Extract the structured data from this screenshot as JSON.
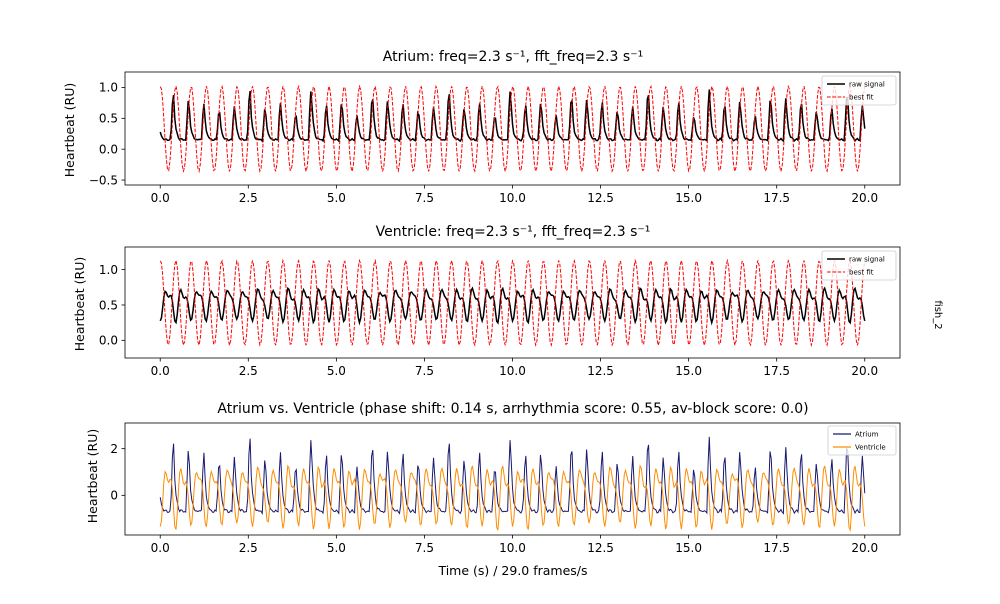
{
  "side_label": "fish_2",
  "colors": {
    "raw_signal": "#000000",
    "best_fit": "#ff0000",
    "atrium": "#191970",
    "ventricle": "#ff8c00"
  },
  "chart_data": [
    {
      "type": "line",
      "title": "Atrium: freq=2.3 s⁻¹, fft_freq=2.3 s⁻¹",
      "xlabel": "",
      "ylabel": "Heartbeat (RU)",
      "xlim": [
        -1.0,
        21.0
      ],
      "ylim": [
        -0.58,
        1.25
      ],
      "x_ticks": [
        0.0,
        2.5,
        5.0,
        7.5,
        10.0,
        12.5,
        15.0,
        17.5,
        20.0
      ],
      "x_tick_labels": [
        "0.0",
        "2.5",
        "5.0",
        "7.5",
        "10.0",
        "12.5",
        "15.0",
        "17.5",
        "20.0"
      ],
      "y_ticks": [
        -0.5,
        0.0,
        0.5,
        1.0
      ],
      "y_tick_labels": [
        "−0.5",
        "0.0",
        "0.5",
        "1.0"
      ],
      "grid": false,
      "legend_position": "upper right",
      "series": [
        {
          "name": "raw signal",
          "style": "solid",
          "color": "#000000",
          "model": "pulse",
          "x_range": [
            0.0,
            20.0
          ],
          "frequency_hz": 2.3,
          "baseline": 0.15,
          "peak_max": 1.0,
          "peak_min": 0.5,
          "phase_s": 0.3
        },
        {
          "name": "best fit",
          "style": "dashed",
          "color": "#ff0000",
          "model": "sine",
          "x_range": [
            0.0,
            20.0
          ],
          "frequency_hz": 2.3,
          "mean": 0.33,
          "amplitude": 0.69,
          "phase_s": 0.0
        }
      ]
    },
    {
      "type": "line",
      "title": "Ventricle: freq=2.3 s⁻¹, fft_freq=2.3 s⁻¹",
      "xlabel": "",
      "ylabel": "Heartbeat (RU)",
      "xlim": [
        -1.0,
        21.0
      ],
      "ylim": [
        -0.25,
        1.32
      ],
      "x_ticks": [
        0.0,
        2.5,
        5.0,
        7.5,
        10.0,
        12.5,
        15.0,
        17.5,
        20.0
      ],
      "x_tick_labels": [
        "0.0",
        "2.5",
        "5.0",
        "7.5",
        "10.0",
        "12.5",
        "15.0",
        "17.5",
        "20.0"
      ],
      "y_ticks": [
        0.0,
        0.5,
        1.0
      ],
      "y_tick_labels": [
        "0.0",
        "0.5",
        "1.0"
      ],
      "grid": false,
      "legend_position": "upper right",
      "series": [
        {
          "name": "raw signal",
          "style": "solid",
          "color": "#000000",
          "model": "wave",
          "x_range": [
            0.0,
            20.0
          ],
          "frequency_hz": 2.3,
          "mean": 0.53,
          "amplitude": 0.24,
          "phase_s": 0.1
        },
        {
          "name": "best fit",
          "style": "dashed",
          "color": "#ff0000",
          "model": "sine",
          "x_range": [
            0.0,
            20.0
          ],
          "frequency_hz": 2.3,
          "mean": 0.53,
          "amplitude": 0.6,
          "phase_s": 0.0
        }
      ]
    },
    {
      "type": "line",
      "title": "Atrium vs. Ventricle (phase shift: 0.14 s, arrhythmia score:  0.55, av-block score: 0.0)",
      "xlabel": "Time (s) / 29.0 frames/s",
      "ylabel": "Heartbeat (RU)",
      "xlim": [
        -1.0,
        21.0
      ],
      "ylim": [
        -1.7,
        3.1
      ],
      "x_ticks": [
        0.0,
        2.5,
        5.0,
        7.5,
        10.0,
        12.5,
        15.0,
        17.5,
        20.0
      ],
      "x_tick_labels": [
        "0.0",
        "2.5",
        "5.0",
        "7.5",
        "10.0",
        "12.5",
        "15.0",
        "17.5",
        "20.0"
      ],
      "y_ticks": [
        0,
        2
      ],
      "y_tick_labels": [
        "0",
        "2"
      ],
      "grid": false,
      "legend_position": "upper right",
      "series": [
        {
          "name": "Atrium",
          "style": "solid",
          "color": "#191970",
          "model": "pulse",
          "x_range": [
            0.0,
            20.0
          ],
          "frequency_hz": 2.3,
          "baseline": -0.7,
          "peak_max": 2.6,
          "peak_min": 1.1,
          "phase_s": 0.3
        },
        {
          "name": "Ventricle",
          "style": "solid",
          "color": "#ff8c00",
          "model": "wave",
          "x_range": [
            0.0,
            20.0
          ],
          "frequency_hz": 2.3,
          "mean": 0.1,
          "amplitude": 1.35,
          "phase_s": 0.1
        }
      ]
    }
  ]
}
